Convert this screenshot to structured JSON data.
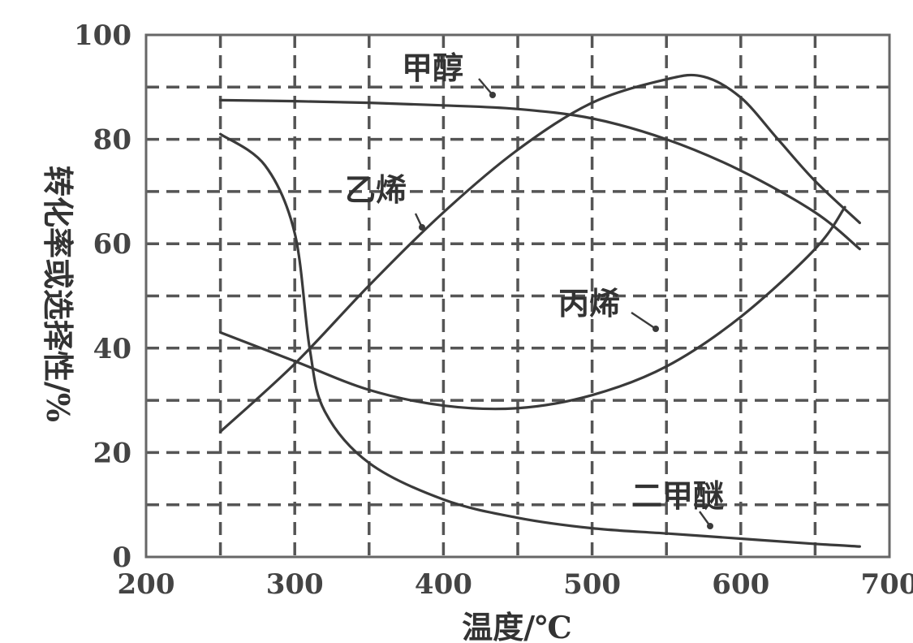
{
  "chart_data": {
    "type": "line",
    "xlabel": "温度/℃",
    "ylabel": "转化率或选择性/%",
    "xlim": [
      200,
      700
    ],
    "ylim": [
      0,
      100
    ],
    "xticks": [
      200,
      300,
      400,
      500,
      600,
      700
    ],
    "yticks": [
      0,
      20,
      40,
      60,
      80,
      100
    ],
    "grid": true,
    "series": [
      {
        "name": "甲醇",
        "x": [
          250,
          300,
          350,
          400,
          450,
          500,
          550,
          600,
          650,
          680
        ],
        "y": [
          87.5,
          87.3,
          87,
          86.5,
          85.8,
          84,
          80,
          74,
          66,
          59
        ]
      },
      {
        "name": "乙烯",
        "x": [
          250,
          300,
          350,
          400,
          450,
          500,
          550,
          575,
          600,
          625,
          650,
          680
        ],
        "y": [
          24,
          37,
          52,
          66,
          78,
          87,
          91.5,
          92,
          88,
          80,
          72,
          64
        ]
      },
      {
        "name": "丙烯",
        "x": [
          250,
          300,
          350,
          400,
          450,
          500,
          550,
          600,
          650,
          670
        ],
        "y": [
          43,
          37.5,
          32,
          29,
          28.5,
          31,
          36.5,
          46,
          59,
          67
        ]
      },
      {
        "name": "二甲醚",
        "x": [
          250,
          280,
          300,
          310,
          320,
          350,
          400,
          450,
          500,
          550,
          600,
          650,
          680
        ],
        "y": [
          81,
          75,
          62,
          40,
          28,
          18,
          11,
          7.5,
          5.5,
          4.5,
          3.5,
          2.5,
          2
        ]
      }
    ]
  }
}
